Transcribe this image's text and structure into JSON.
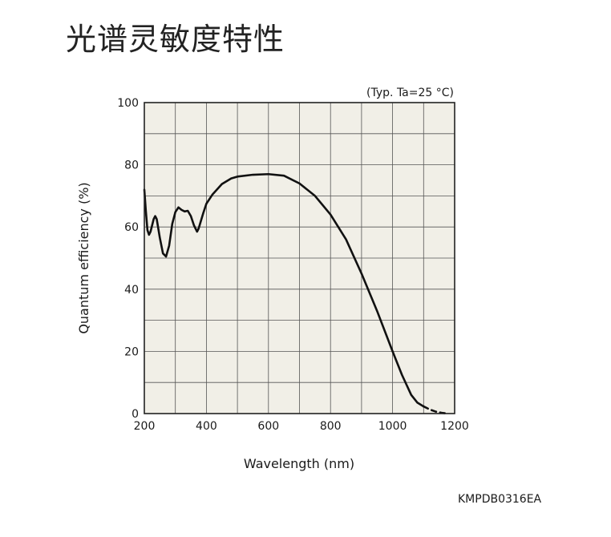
{
  "page": {
    "title": "光谱灵敏度特性",
    "doc_code": "KMPDB0316EA"
  },
  "chart_data": {
    "type": "line",
    "condition_label": "(Typ. Ta=25 °C)",
    "xlabel": "Wavelength (nm)",
    "ylabel": "Quantum efficiency (%)",
    "xlim": [
      200,
      1200
    ],
    "ylim": [
      0,
      100
    ],
    "x_ticks": [
      200,
      400,
      600,
      800,
      1000,
      1200
    ],
    "y_ticks": [
      0,
      20,
      40,
      60,
      80,
      100
    ],
    "grid": true,
    "plot_bg": "#f1efe7",
    "line_color": "#111111",
    "series": [
      {
        "style": "solid",
        "points": [
          [
            200,
            72
          ],
          [
            205,
            65
          ],
          [
            210,
            59
          ],
          [
            215,
            57.5
          ],
          [
            220,
            58.5
          ],
          [
            230,
            62.5
          ],
          [
            235,
            63.5
          ],
          [
            240,
            62.5
          ],
          [
            250,
            56.5
          ],
          [
            260,
            51.5
          ],
          [
            270,
            50.5
          ],
          [
            280,
            54
          ],
          [
            290,
            61
          ],
          [
            300,
            64.8
          ],
          [
            310,
            66.3
          ],
          [
            320,
            65.5
          ],
          [
            330,
            65
          ],
          [
            340,
            65.2
          ],
          [
            350,
            63.5
          ],
          [
            360,
            60.5
          ],
          [
            370,
            58.5
          ],
          [
            375,
            59.5
          ],
          [
            390,
            64.5
          ],
          [
            400,
            67.5
          ],
          [
            420,
            70.5
          ],
          [
            450,
            73.8
          ],
          [
            480,
            75.6
          ],
          [
            500,
            76.2
          ],
          [
            550,
            76.8
          ],
          [
            600,
            77
          ],
          [
            650,
            76.5
          ],
          [
            700,
            74
          ],
          [
            750,
            70
          ],
          [
            800,
            64
          ],
          [
            850,
            56
          ],
          [
            900,
            45
          ],
          [
            950,
            33
          ],
          [
            1000,
            20
          ],
          [
            1030,
            12.5
          ],
          [
            1060,
            6
          ],
          [
            1080,
            3.5
          ],
          [
            1100,
            2.3
          ]
        ]
      },
      {
        "style": "dashed",
        "points": [
          [
            1100,
            2.3
          ],
          [
            1120,
            1.3
          ],
          [
            1140,
            0.6
          ],
          [
            1160,
            0.2
          ],
          [
            1180,
            0
          ]
        ]
      }
    ]
  }
}
